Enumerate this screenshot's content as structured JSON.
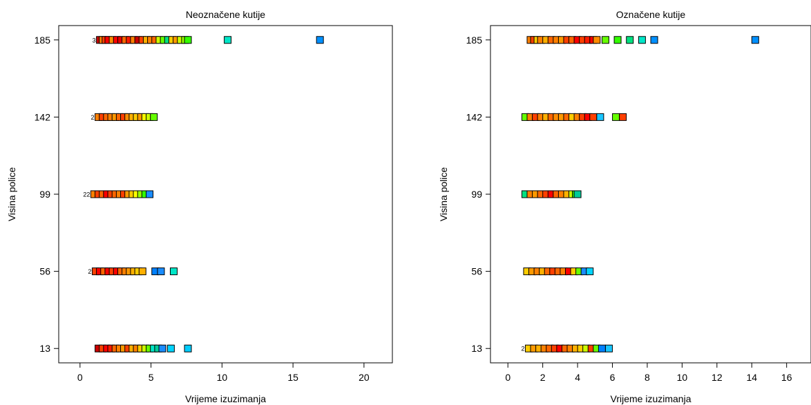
{
  "chart_data": [
    {
      "type": "scatter",
      "title": "Neoznačene kutije",
      "xlabel": "Vrijeme izuzimanja",
      "ylabel": "Visina police",
      "xlim": [
        -1.5,
        22
      ],
      "ylim": [
        5,
        193
      ],
      "xticks": [
        0,
        5,
        10,
        15,
        20
      ],
      "xtick_labels": [
        "0",
        "5",
        "10",
        "15",
        "20"
      ],
      "yticks": [
        13,
        56,
        99,
        142,
        185
      ],
      "ytick_labels": [
        "13",
        "56",
        "99",
        "142",
        "185"
      ],
      "grid": false,
      "rows": [
        {
          "y": 185,
          "lead_label": "3",
          "points": [
            {
              "x": 1.4,
              "color": "#cc0000"
            },
            {
              "x": 1.6,
              "color": "#ff8000"
            },
            {
              "x": 1.8,
              "color": "#ff4000"
            },
            {
              "x": 2.0,
              "color": "#ff0000"
            },
            {
              "x": 2.3,
              "color": "#ff8c00"
            },
            {
              "x": 2.6,
              "color": "#ff0000"
            },
            {
              "x": 2.9,
              "color": "#e60000"
            },
            {
              "x": 3.2,
              "color": "#ff6600"
            },
            {
              "x": 3.5,
              "color": "#ff1a00"
            },
            {
              "x": 3.8,
              "color": "#ff8000"
            },
            {
              "x": 4.1,
              "color": "#cc0000"
            },
            {
              "x": 4.4,
              "color": "#ff4000"
            },
            {
              "x": 4.7,
              "color": "#ffb000"
            },
            {
              "x": 5.0,
              "color": "#ff8000"
            },
            {
              "x": 5.3,
              "color": "#ff6600"
            },
            {
              "x": 5.6,
              "color": "#ccff00"
            },
            {
              "x": 5.9,
              "color": "#66ff00"
            },
            {
              "x": 6.2,
              "color": "#00e080"
            },
            {
              "x": 6.5,
              "color": "#ffcc00"
            },
            {
              "x": 6.8,
              "color": "#ff9900"
            },
            {
              "x": 7.1,
              "color": "#ccff00"
            },
            {
              "x": 7.4,
              "color": "#99ff00"
            },
            {
              "x": 7.6,
              "color": "#33ff00"
            },
            {
              "x": 10.4,
              "color": "#00e6c8"
            },
            {
              "x": 16.9,
              "color": "#0090ff"
            }
          ]
        },
        {
          "y": 142,
          "lead_label": "2",
          "points": [
            {
              "x": 1.3,
              "color": "#ff8000"
            },
            {
              "x": 1.6,
              "color": "#ff4000"
            },
            {
              "x": 1.9,
              "color": "#ff6600"
            },
            {
              "x": 2.2,
              "color": "#ff8000"
            },
            {
              "x": 2.5,
              "color": "#ff9900"
            },
            {
              "x": 2.8,
              "color": "#ff6600"
            },
            {
              "x": 3.1,
              "color": "#ff4000"
            },
            {
              "x": 3.4,
              "color": "#ff8c00"
            },
            {
              "x": 3.7,
              "color": "#ffb000"
            },
            {
              "x": 4.0,
              "color": "#ffcc00"
            },
            {
              "x": 4.3,
              "color": "#ff9900"
            },
            {
              "x": 4.6,
              "color": "#ffff00"
            },
            {
              "x": 4.9,
              "color": "#ccff00"
            },
            {
              "x": 5.2,
              "color": "#66ff00"
            }
          ]
        },
        {
          "y": 99,
          "lead_label": "22",
          "points": [
            {
              "x": 1.0,
              "color": "#ff8000"
            },
            {
              "x": 1.3,
              "color": "#ff4000"
            },
            {
              "x": 1.6,
              "color": "#ff6600"
            },
            {
              "x": 1.9,
              "color": "#ff0000"
            },
            {
              "x": 2.2,
              "color": "#ff4000"
            },
            {
              "x": 2.5,
              "color": "#ff6600"
            },
            {
              "x": 2.8,
              "color": "#ff8000"
            },
            {
              "x": 3.1,
              "color": "#ff4000"
            },
            {
              "x": 3.4,
              "color": "#ff9900"
            },
            {
              "x": 3.7,
              "color": "#ffcc00"
            },
            {
              "x": 4.0,
              "color": "#ffff00"
            },
            {
              "x": 4.3,
              "color": "#99ff00"
            },
            {
              "x": 4.6,
              "color": "#33ff00"
            },
            {
              "x": 4.9,
              "color": "#1a8cff"
            }
          ]
        },
        {
          "y": 56,
          "lead_label": "2",
          "points": [
            {
              "x": 1.1,
              "color": "#ff4000"
            },
            {
              "x": 1.4,
              "color": "#ff0000"
            },
            {
              "x": 1.7,
              "color": "#ff6600"
            },
            {
              "x": 2.0,
              "color": "#ff0000"
            },
            {
              "x": 2.3,
              "color": "#ff4000"
            },
            {
              "x": 2.6,
              "color": "#ff0000"
            },
            {
              "x": 2.9,
              "color": "#ff6600"
            },
            {
              "x": 3.2,
              "color": "#ff8000"
            },
            {
              "x": 3.5,
              "color": "#ff9900"
            },
            {
              "x": 3.8,
              "color": "#ffb000"
            },
            {
              "x": 4.1,
              "color": "#ffcc00"
            },
            {
              "x": 4.4,
              "color": "#ffb000"
            },
            {
              "x": 5.3,
              "color": "#0080ff"
            },
            {
              "x": 5.7,
              "color": "#1a8cff"
            },
            {
              "x": 6.6,
              "color": "#00e6c8"
            }
          ]
        },
        {
          "y": 13,
          "lead_label": "",
          "points": [
            {
              "x": 1.3,
              "color": "#cc0000"
            },
            {
              "x": 1.6,
              "color": "#ff4000"
            },
            {
              "x": 1.9,
              "color": "#ff0000"
            },
            {
              "x": 2.2,
              "color": "#ff1a00"
            },
            {
              "x": 2.5,
              "color": "#ff6600"
            },
            {
              "x": 2.8,
              "color": "#ff8000"
            },
            {
              "x": 3.1,
              "color": "#ff9900"
            },
            {
              "x": 3.4,
              "color": "#ff4000"
            },
            {
              "x": 3.7,
              "color": "#ffb000"
            },
            {
              "x": 4.0,
              "color": "#ff8000"
            },
            {
              "x": 4.3,
              "color": "#ffcc00"
            },
            {
              "x": 4.6,
              "color": "#ccff00"
            },
            {
              "x": 4.9,
              "color": "#66ff00"
            },
            {
              "x": 5.2,
              "color": "#00e6c8"
            },
            {
              "x": 5.5,
              "color": "#00cc99"
            },
            {
              "x": 5.8,
              "color": "#1a8cff"
            },
            {
              "x": 6.4,
              "color": "#00d4ff"
            },
            {
              "x": 7.6,
              "color": "#00ccff"
            }
          ]
        }
      ]
    },
    {
      "type": "scatter",
      "title": "Označene kutije",
      "xlabel": "Vrijeme izuzimanja",
      "ylabel": "Visina police",
      "xlim": [
        -1,
        17.4
      ],
      "ylim": [
        5,
        193
      ],
      "xticks": [
        0,
        2,
        4,
        6,
        8,
        10,
        12,
        14,
        16
      ],
      "xtick_labels": [
        "0",
        "2",
        "4",
        "6",
        "8",
        "10",
        "12",
        "14",
        "16"
      ],
      "yticks": [
        13,
        56,
        99,
        142,
        185
      ],
      "ytick_labels": [
        "13",
        "56",
        "99",
        "142",
        "185"
      ],
      "grid": false,
      "rows": [
        {
          "y": 185,
          "lead_label": "",
          "points": [
            {
              "x": 1.3,
              "color": "#ff8000"
            },
            {
              "x": 1.5,
              "color": "#ff4000"
            },
            {
              "x": 1.7,
              "color": "#ffcc00"
            },
            {
              "x": 1.9,
              "color": "#ff8000"
            },
            {
              "x": 2.2,
              "color": "#ffb000"
            },
            {
              "x": 2.5,
              "color": "#ff6600"
            },
            {
              "x": 2.8,
              "color": "#ff8000"
            },
            {
              "x": 3.1,
              "color": "#ff9900"
            },
            {
              "x": 3.4,
              "color": "#ff4000"
            },
            {
              "x": 3.7,
              "color": "#ff6600"
            },
            {
              "x": 4.0,
              "color": "#ff0000"
            },
            {
              "x": 4.3,
              "color": "#ff4000"
            },
            {
              "x": 4.6,
              "color": "#ff1a00"
            },
            {
              "x": 4.9,
              "color": "#ff0000"
            },
            {
              "x": 5.1,
              "color": "#ff8c00"
            },
            {
              "x": 5.6,
              "color": "#66ff00"
            },
            {
              "x": 6.3,
              "color": "#33ff00"
            },
            {
              "x": 7.0,
              "color": "#00e080"
            },
            {
              "x": 7.7,
              "color": "#00e6c8"
            },
            {
              "x": 8.4,
              "color": "#0090ff"
            },
            {
              "x": 14.2,
              "color": "#0090ff"
            }
          ]
        },
        {
          "y": 142,
          "lead_label": "",
          "points": [
            {
              "x": 1.0,
              "color": "#66ff00"
            },
            {
              "x": 1.3,
              "color": "#ff8000"
            },
            {
              "x": 1.6,
              "color": "#ff4000"
            },
            {
              "x": 1.9,
              "color": "#ff8000"
            },
            {
              "x": 2.2,
              "color": "#ffb000"
            },
            {
              "x": 2.5,
              "color": "#ff6600"
            },
            {
              "x": 2.8,
              "color": "#ff8c00"
            },
            {
              "x": 3.1,
              "color": "#ff9900"
            },
            {
              "x": 3.4,
              "color": "#ff6600"
            },
            {
              "x": 3.7,
              "color": "#ffcc00"
            },
            {
              "x": 4.0,
              "color": "#ff8000"
            },
            {
              "x": 4.3,
              "color": "#ff4000"
            },
            {
              "x": 4.6,
              "color": "#ff0000"
            },
            {
              "x": 4.9,
              "color": "#ff4000"
            },
            {
              "x": 5.3,
              "color": "#1ac6ff"
            },
            {
              "x": 6.2,
              "color": "#66ff00"
            },
            {
              "x": 6.6,
              "color": "#ff4000"
            }
          ]
        },
        {
          "y": 99,
          "lead_label": "",
          "points": [
            {
              "x": 1.0,
              "color": "#00e080"
            },
            {
              "x": 1.3,
              "color": "#ff8000"
            },
            {
              "x": 1.6,
              "color": "#ff9900"
            },
            {
              "x": 1.9,
              "color": "#ff6600"
            },
            {
              "x": 2.2,
              "color": "#ff4000"
            },
            {
              "x": 2.5,
              "color": "#ff0000"
            },
            {
              "x": 2.8,
              "color": "#ff6600"
            },
            {
              "x": 3.1,
              "color": "#ff8000"
            },
            {
              "x": 3.4,
              "color": "#ffb000"
            },
            {
              "x": 3.7,
              "color": "#ccff00"
            },
            {
              "x": 3.9,
              "color": "#33ff00"
            },
            {
              "x": 4.0,
              "color": "#00cc99"
            }
          ]
        },
        {
          "y": 56,
          "lead_label": "",
          "points": [
            {
              "x": 1.1,
              "color": "#ffcc00"
            },
            {
              "x": 1.4,
              "color": "#ff9900"
            },
            {
              "x": 1.7,
              "color": "#ff8000"
            },
            {
              "x": 2.0,
              "color": "#ffb000"
            },
            {
              "x": 2.3,
              "color": "#ff6600"
            },
            {
              "x": 2.6,
              "color": "#ff4000"
            },
            {
              "x": 2.9,
              "color": "#ff6600"
            },
            {
              "x": 3.2,
              "color": "#ff8000"
            },
            {
              "x": 3.5,
              "color": "#ff0000"
            },
            {
              "x": 3.8,
              "color": "#ffcc00"
            },
            {
              "x": 4.1,
              "color": "#66ff00"
            },
            {
              "x": 4.4,
              "color": "#1a8cff"
            },
            {
              "x": 4.7,
              "color": "#00d4ff"
            }
          ]
        },
        {
          "y": 13,
          "lead_label": "2",
          "points": [
            {
              "x": 1.2,
              "color": "#ffcc00"
            },
            {
              "x": 1.5,
              "color": "#ff9900"
            },
            {
              "x": 1.8,
              "color": "#ffb000"
            },
            {
              "x": 2.1,
              "color": "#ff8000"
            },
            {
              "x": 2.4,
              "color": "#ff6600"
            },
            {
              "x": 2.7,
              "color": "#ff4000"
            },
            {
              "x": 3.0,
              "color": "#ff0000"
            },
            {
              "x": 3.3,
              "color": "#ff6600"
            },
            {
              "x": 3.6,
              "color": "#ff8000"
            },
            {
              "x": 3.9,
              "color": "#ffb000"
            },
            {
              "x": 4.2,
              "color": "#ffcc00"
            },
            {
              "x": 4.5,
              "color": "#ccff00"
            },
            {
              "x": 4.8,
              "color": "#ff4000"
            },
            {
              "x": 5.1,
              "color": "#66ff00"
            },
            {
              "x": 5.4,
              "color": "#0080ff"
            },
            {
              "x": 5.8,
              "color": "#1ac6ff"
            }
          ]
        }
      ]
    }
  ]
}
